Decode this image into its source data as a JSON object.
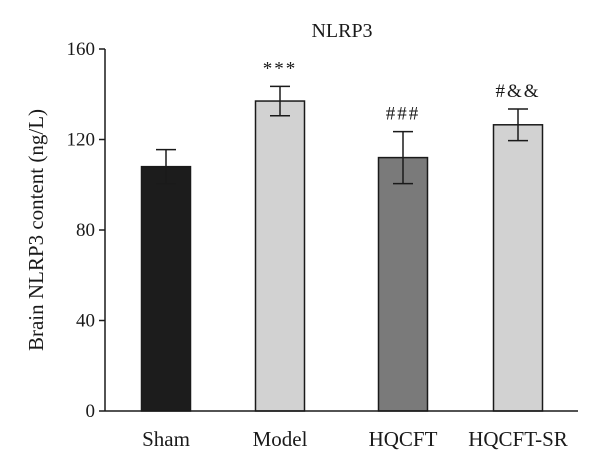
{
  "chart_data": {
    "type": "bar",
    "title": "NLRP3",
    "xlabel": "",
    "ylabel": "Brain NLRP3 content (ng/L)",
    "ylim": [
      0,
      160
    ],
    "yticks": [
      0,
      40,
      80,
      120,
      160
    ],
    "categories": [
      "Sham",
      "Model",
      "HQCFT",
      "HQCFT-SR"
    ],
    "values": [
      108,
      137,
      112,
      126.5
    ],
    "errors": [
      7.5,
      6.5,
      11.5,
      7
    ],
    "significance": [
      "",
      "***",
      "###",
      "#&&"
    ],
    "bar_colors": [
      "#1c1c1c",
      "#d2d2d2",
      "#7a7a7a",
      "#d2d2d2"
    ],
    "grid": false,
    "legend": "none"
  }
}
